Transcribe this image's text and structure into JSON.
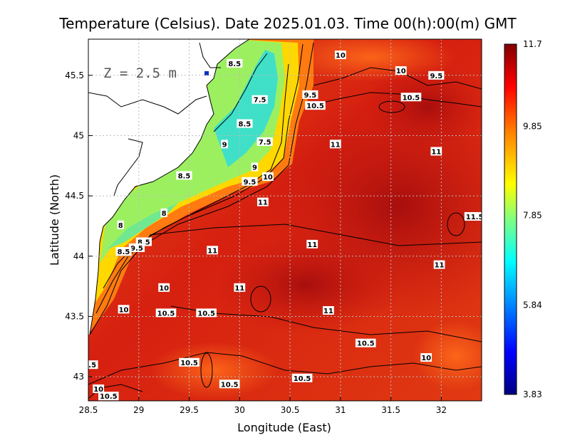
{
  "chart_data": {
    "type": "heatmap",
    "title": "Temperature (Celsius). Date 2025.01.03. Time 00(h):00(m) GMT",
    "xlabel": "Longitude (East)",
    "ylabel": "Latitude (North)",
    "xlim": [
      28.5,
      32.4
    ],
    "ylim": [
      42.8,
      45.8
    ],
    "x_ticks": [
      "28.5",
      "29",
      "29.5",
      "30",
      "30.5",
      "31",
      "31.5",
      "32"
    ],
    "y_ticks": [
      "43",
      "43.5",
      "44",
      "44.5",
      "45",
      "45.5"
    ],
    "grid": true,
    "depth_label": "Z = 2.5 m",
    "colorbar": {
      "min": 3.83,
      "max": 11.7,
      "tick_labels": [
        "11.7",
        "9.85",
        "7.85",
        "5.84",
        "3.83"
      ],
      "tick_values": [
        11.7,
        9.85,
        7.85,
        5.84,
        3.83
      ],
      "colors": [
        "#000080",
        "#0000ff",
        "#0080ff",
        "#00ffff",
        "#80ff80",
        "#ffff00",
        "#ff8000",
        "#ff0000",
        "#800000"
      ]
    },
    "contour_labels": [
      {
        "text": "10",
        "lon": 31.0,
        "lat": 45.67
      },
      {
        "text": "8.5",
        "lon": 29.95,
        "lat": 45.6
      },
      {
        "text": "10",
        "lon": 31.6,
        "lat": 45.54
      },
      {
        "text": "9.5",
        "lon": 31.95,
        "lat": 45.5
      },
      {
        "text": "9.5",
        "lon": 30.7,
        "lat": 45.34
      },
      {
        "text": "7.5",
        "lon": 30.2,
        "lat": 45.3
      },
      {
        "text": "10.5",
        "lon": 31.7,
        "lat": 45.32
      },
      {
        "text": "10.5",
        "lon": 30.75,
        "lat": 45.25
      },
      {
        "text": "8.5",
        "lon": 30.05,
        "lat": 45.1
      },
      {
        "text": "7.5",
        "lon": 30.25,
        "lat": 44.95
      },
      {
        "text": "11",
        "lon": 30.95,
        "lat": 44.93
      },
      {
        "text": "11",
        "lon": 31.95,
        "lat": 44.87
      },
      {
        "text": "9",
        "lon": 29.85,
        "lat": 44.93
      },
      {
        "text": "9",
        "lon": 30.15,
        "lat": 44.74
      },
      {
        "text": "10",
        "lon": 30.28,
        "lat": 44.66
      },
      {
        "text": "9.5",
        "lon": 30.1,
        "lat": 44.62
      },
      {
        "text": "8.5",
        "lon": 29.45,
        "lat": 44.67
      },
      {
        "text": "11",
        "lon": 30.23,
        "lat": 44.45
      },
      {
        "text": "8",
        "lon": 29.25,
        "lat": 44.36
      },
      {
        "text": "8",
        "lon": 28.82,
        "lat": 44.26
      },
      {
        "text": "8.5",
        "lon": 29.05,
        "lat": 44.12
      },
      {
        "text": "9.5",
        "lon": 28.98,
        "lat": 44.07
      },
      {
        "text": "8.5",
        "lon": 28.85,
        "lat": 44.04
      },
      {
        "text": "11",
        "lon": 29.73,
        "lat": 44.05
      },
      {
        "text": "11",
        "lon": 30.72,
        "lat": 44.1
      },
      {
        "text": "11.5",
        "lon": 32.33,
        "lat": 44.33
      },
      {
        "text": "11",
        "lon": 31.98,
        "lat": 43.93
      },
      {
        "text": "10",
        "lon": 29.25,
        "lat": 43.74
      },
      {
        "text": "11",
        "lon": 30.0,
        "lat": 43.74
      },
      {
        "text": "10",
        "lon": 28.85,
        "lat": 43.56
      },
      {
        "text": "10.5",
        "lon": 29.27,
        "lat": 43.53
      },
      {
        "text": "10.5",
        "lon": 29.67,
        "lat": 43.53
      },
      {
        "text": "11",
        "lon": 30.88,
        "lat": 43.55
      },
      {
        "text": "10.5",
        "lon": 31.25,
        "lat": 43.28
      },
      {
        "text": "10",
        "lon": 31.85,
        "lat": 43.16
      },
      {
        "text": "10.5",
        "lon": 29.5,
        "lat": 43.12
      },
      {
        "text": "10.5",
        "lon": 30.62,
        "lat": 42.99
      },
      {
        "text": "10.5",
        "lon": 29.9,
        "lat": 42.94
      },
      {
        "text": "10",
        "lon": 28.6,
        "lat": 42.9
      },
      {
        "text": "10.5",
        "lon": 28.7,
        "lat": 42.84
      },
      {
        "text": ".5",
        "lon": 28.54,
        "lat": 43.1
      }
    ]
  }
}
